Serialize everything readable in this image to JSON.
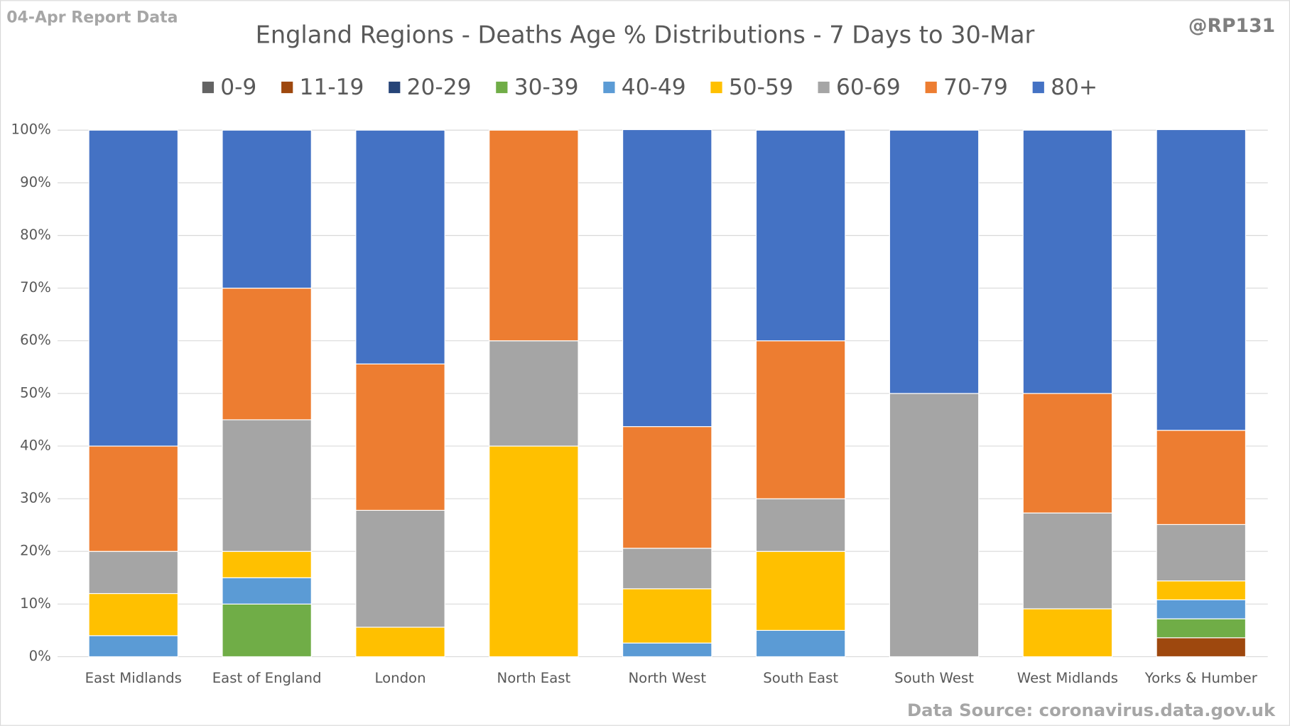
{
  "chart_data": {
    "type": "stacked_bar",
    "title": "England Regions - Deaths Age % Distributions - 7 Days to 30-Mar",
    "corner_label": "04-Apr Report Data",
    "handle": "@RP131",
    "source": "Data Source: coronavirus.data.gov.uk",
    "categories": [
      "East Midlands",
      "East of England",
      "London",
      "North East",
      "North West",
      "South East",
      "South West",
      "West Midlands",
      "Yorks & Humber"
    ],
    "series": [
      {
        "name": "0-9",
        "color": "#636363",
        "values": [
          0,
          0,
          0,
          0,
          0,
          0,
          0,
          0,
          0
        ]
      },
      {
        "name": "11-19",
        "color": "#9e480e",
        "values": [
          0,
          0,
          0,
          0,
          0,
          0,
          0,
          0,
          3.6
        ]
      },
      {
        "name": "20-29",
        "color": "#264478",
        "values": [
          0,
          0,
          0,
          0,
          0,
          0,
          0,
          0,
          0
        ]
      },
      {
        "name": "30-39",
        "color": "#70ad47",
        "values": [
          0,
          10,
          0,
          0,
          0,
          0,
          0,
          0,
          3.6
        ]
      },
      {
        "name": "40-49",
        "color": "#5b9bd5",
        "values": [
          4,
          5,
          0,
          0,
          2.6,
          5,
          0,
          0,
          3.6
        ]
      },
      {
        "name": "50-59",
        "color": "#ffc000",
        "values": [
          8,
          5,
          5.6,
          40,
          10.3,
          15,
          0,
          9.1,
          3.6
        ]
      },
      {
        "name": "60-69",
        "color": "#a5a5a5",
        "values": [
          8,
          25,
          22.2,
          20,
          7.7,
          10,
          50,
          18.2,
          10.7
        ]
      },
      {
        "name": "70-79",
        "color": "#ed7d31",
        "values": [
          20,
          25,
          27.8,
          40,
          23.1,
          30,
          0,
          22.7,
          17.9
        ]
      },
      {
        "name": "80+",
        "color": "#4472c4",
        "values": [
          60,
          30,
          44.4,
          0,
          56.4,
          40,
          50,
          50,
          57.1
        ]
      }
    ],
    "ylim": [
      0,
      100
    ],
    "yticks": [
      {
        "value": 0,
        "label": "0%"
      },
      {
        "value": 10,
        "label": "10%"
      },
      {
        "value": 20,
        "label": "20%"
      },
      {
        "value": 30,
        "label": "30%"
      },
      {
        "value": 40,
        "label": "40%"
      },
      {
        "value": 50,
        "label": "50%"
      },
      {
        "value": 60,
        "label": "60%"
      },
      {
        "value": 70,
        "label": "70%"
      },
      {
        "value": 80,
        "label": "80%"
      },
      {
        "value": 90,
        "label": "90%"
      },
      {
        "value": 100,
        "label": "100%"
      }
    ],
    "grid": true
  }
}
